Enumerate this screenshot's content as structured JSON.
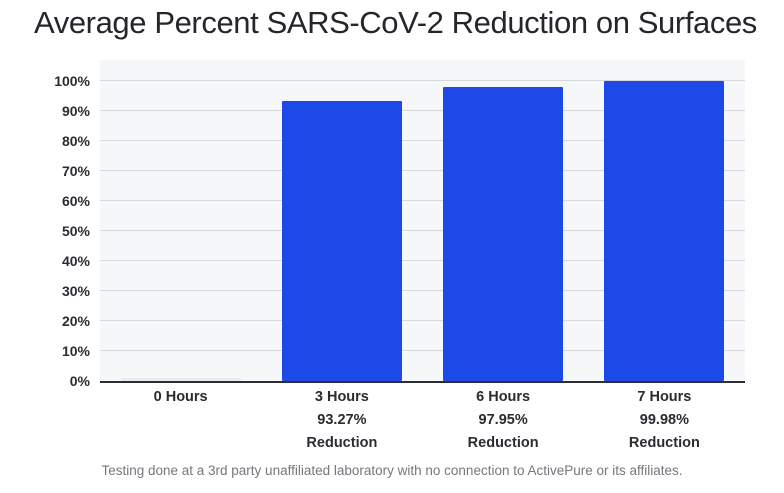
{
  "page": {
    "title": "Average Percent SARS-CoV-2 Reduction on Surfaces",
    "footnote": "Testing done at a 3rd party unaffiliated laboratory with no connection to ActivePure or its affiliates."
  },
  "colors": {
    "bar": "#1d49e8",
    "zero_bar": "#e9ebf1",
    "plot_background": "#f6f7f9",
    "gridline": "#d6d8dd",
    "axis_line": "#2b2e39",
    "title_text": "#24262b",
    "tick_text": "#2a2c32",
    "footnote_text": "#75777d"
  },
  "chart_data": {
    "type": "bar",
    "title": "Average Percent SARS-CoV-2 Reduction on Surfaces",
    "categories": [
      "0 Hours",
      "3 Hours",
      "6 Hours",
      "7 Hours"
    ],
    "values": [
      0,
      93.27,
      97.95,
      99.98
    ],
    "x_tick_labels": [
      [
        "0 Hours"
      ],
      [
        "3 Hours",
        "93.27%",
        "Reduction"
      ],
      [
        "6 Hours",
        "97.95%",
        "Reduction"
      ],
      [
        "7 Hours",
        "99.98%",
        "Reduction"
      ]
    ],
    "y_tick_labels": [
      "100%",
      "90%",
      "80%",
      "70%",
      "60%",
      "50%",
      "40%",
      "30%",
      "20%",
      "10%",
      "0%"
    ],
    "ylim": [
      0,
      100
    ],
    "y_step": 10,
    "grid": true,
    "legend": false,
    "xlabel": "",
    "ylabel": "",
    "footnote": "Testing done at a 3rd party unaffiliated laboratory with no connection to ActivePure or its affiliates."
  }
}
